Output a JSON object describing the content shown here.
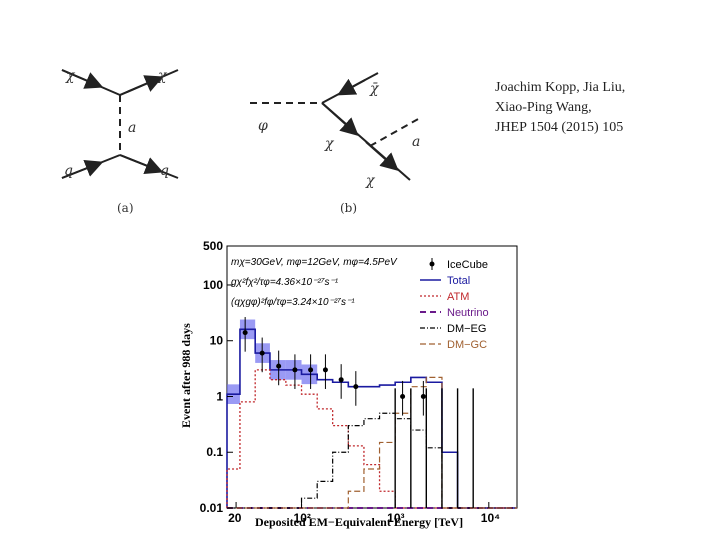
{
  "reference": {
    "line1": "Joachim Kopp, Jia Liu,",
    "line2": "Xiao-Ping Wang,",
    "line3": "JHEP 1504 (2015) 105"
  },
  "diagram_a": {
    "caption": "(a)",
    "top_in": "χ",
    "top_out": "χ",
    "mediator": "a",
    "bottom_in": "q",
    "bottom_out": "q"
  },
  "diagram_b": {
    "caption": "(b)",
    "in": "φ",
    "out_top": "χ̄",
    "mid": "χ",
    "emit": "a",
    "out_bottom": "χ"
  },
  "chart_data": {
    "type": "step",
    "xlabel": "Deposited EM−Equivalent Energy [TeV]",
    "ylabel": "Event after 988 days",
    "xscale": "log",
    "yscale": "log",
    "xlim": [
      16,
      20000
    ],
    "ylim": [
      0.01,
      500
    ],
    "xticks": [
      "20",
      "10²",
      "10³",
      "10⁴"
    ],
    "yticks": [
      "500",
      "100",
      "10",
      "1",
      "0.1",
      "0.01"
    ],
    "params": [
      "mχ=30GeV, mφ=12GeV, mφ=4.5PeV",
      "gχ²fχ²/τφ=4.36×10⁻²⁷s⁻¹",
      "(qχgφ)²fφ/τφ=3.24×10⁻²⁷s⁻¹"
    ],
    "legend": [
      "IceCube",
      "Total",
      "ATM",
      "Neutrino",
      "DM−EG",
      "DM−GC"
    ],
    "bin_edges": [
      16,
      22,
      32,
      46,
      68,
      100,
      147,
      215,
      316,
      464,
      681,
      1000,
      1470,
      2150,
      3160,
      4640,
      6810,
      10000,
      20000
    ],
    "series": [
      {
        "name": "Total",
        "values": [
          1.1,
          16,
          6,
          3,
          3,
          2.5,
          2,
          1.8,
          1.5,
          1.5,
          1.6,
          1.8,
          2.2,
          1.8,
          0.1,
          0.01,
          0.01,
          0.01
        ]
      },
      {
        "name": "ATM",
        "values": [
          0.05,
          0.8,
          3,
          2,
          1.6,
          1.1,
          0.6,
          0.3,
          0.13,
          0.06,
          0.02,
          0.01,
          0.01,
          0.01,
          0.01,
          0.01,
          0.01,
          0.01
        ]
      },
      {
        "name": "Neutrino",
        "values": [
          0.01,
          0.01,
          0.01,
          0.01,
          0.01,
          0.01,
          0.01,
          0.01,
          0.01,
          0.01,
          0.01,
          0.01,
          0.01,
          0.01,
          0.01,
          0.01,
          0.01,
          0.01
        ]
      },
      {
        "name": "DM−EG",
        "values": [
          0.01,
          0.01,
          0.01,
          0.01,
          0.01,
          0.015,
          0.03,
          0.1,
          0.3,
          0.4,
          0.5,
          0.4,
          0.25,
          0.12,
          0.01,
          0.01,
          0.01,
          0.01
        ]
      },
      {
        "name": "DM−GC",
        "values": [
          0.01,
          0.01,
          0.01,
          0.01,
          0.01,
          0.01,
          0.01,
          0.01,
          0.02,
          0.05,
          0.15,
          0.5,
          1.5,
          2.2,
          0.01,
          0.01,
          0.01,
          0.01
        ]
      }
    ],
    "icecube_points": [
      {
        "x": 25,
        "y": 14
      },
      {
        "x": 38,
        "y": 6
      },
      {
        "x": 57,
        "y": 3.5
      },
      {
        "x": 85,
        "y": 3
      },
      {
        "x": 125,
        "y": 3
      },
      {
        "x": 180,
        "y": 3
      },
      {
        "x": 265,
        "y": 2
      },
      {
        "x": 380,
        "y": 1.5
      },
      {
        "x": 1200,
        "y": 1
      },
      {
        "x": 2000,
        "y": 1
      }
    ]
  }
}
